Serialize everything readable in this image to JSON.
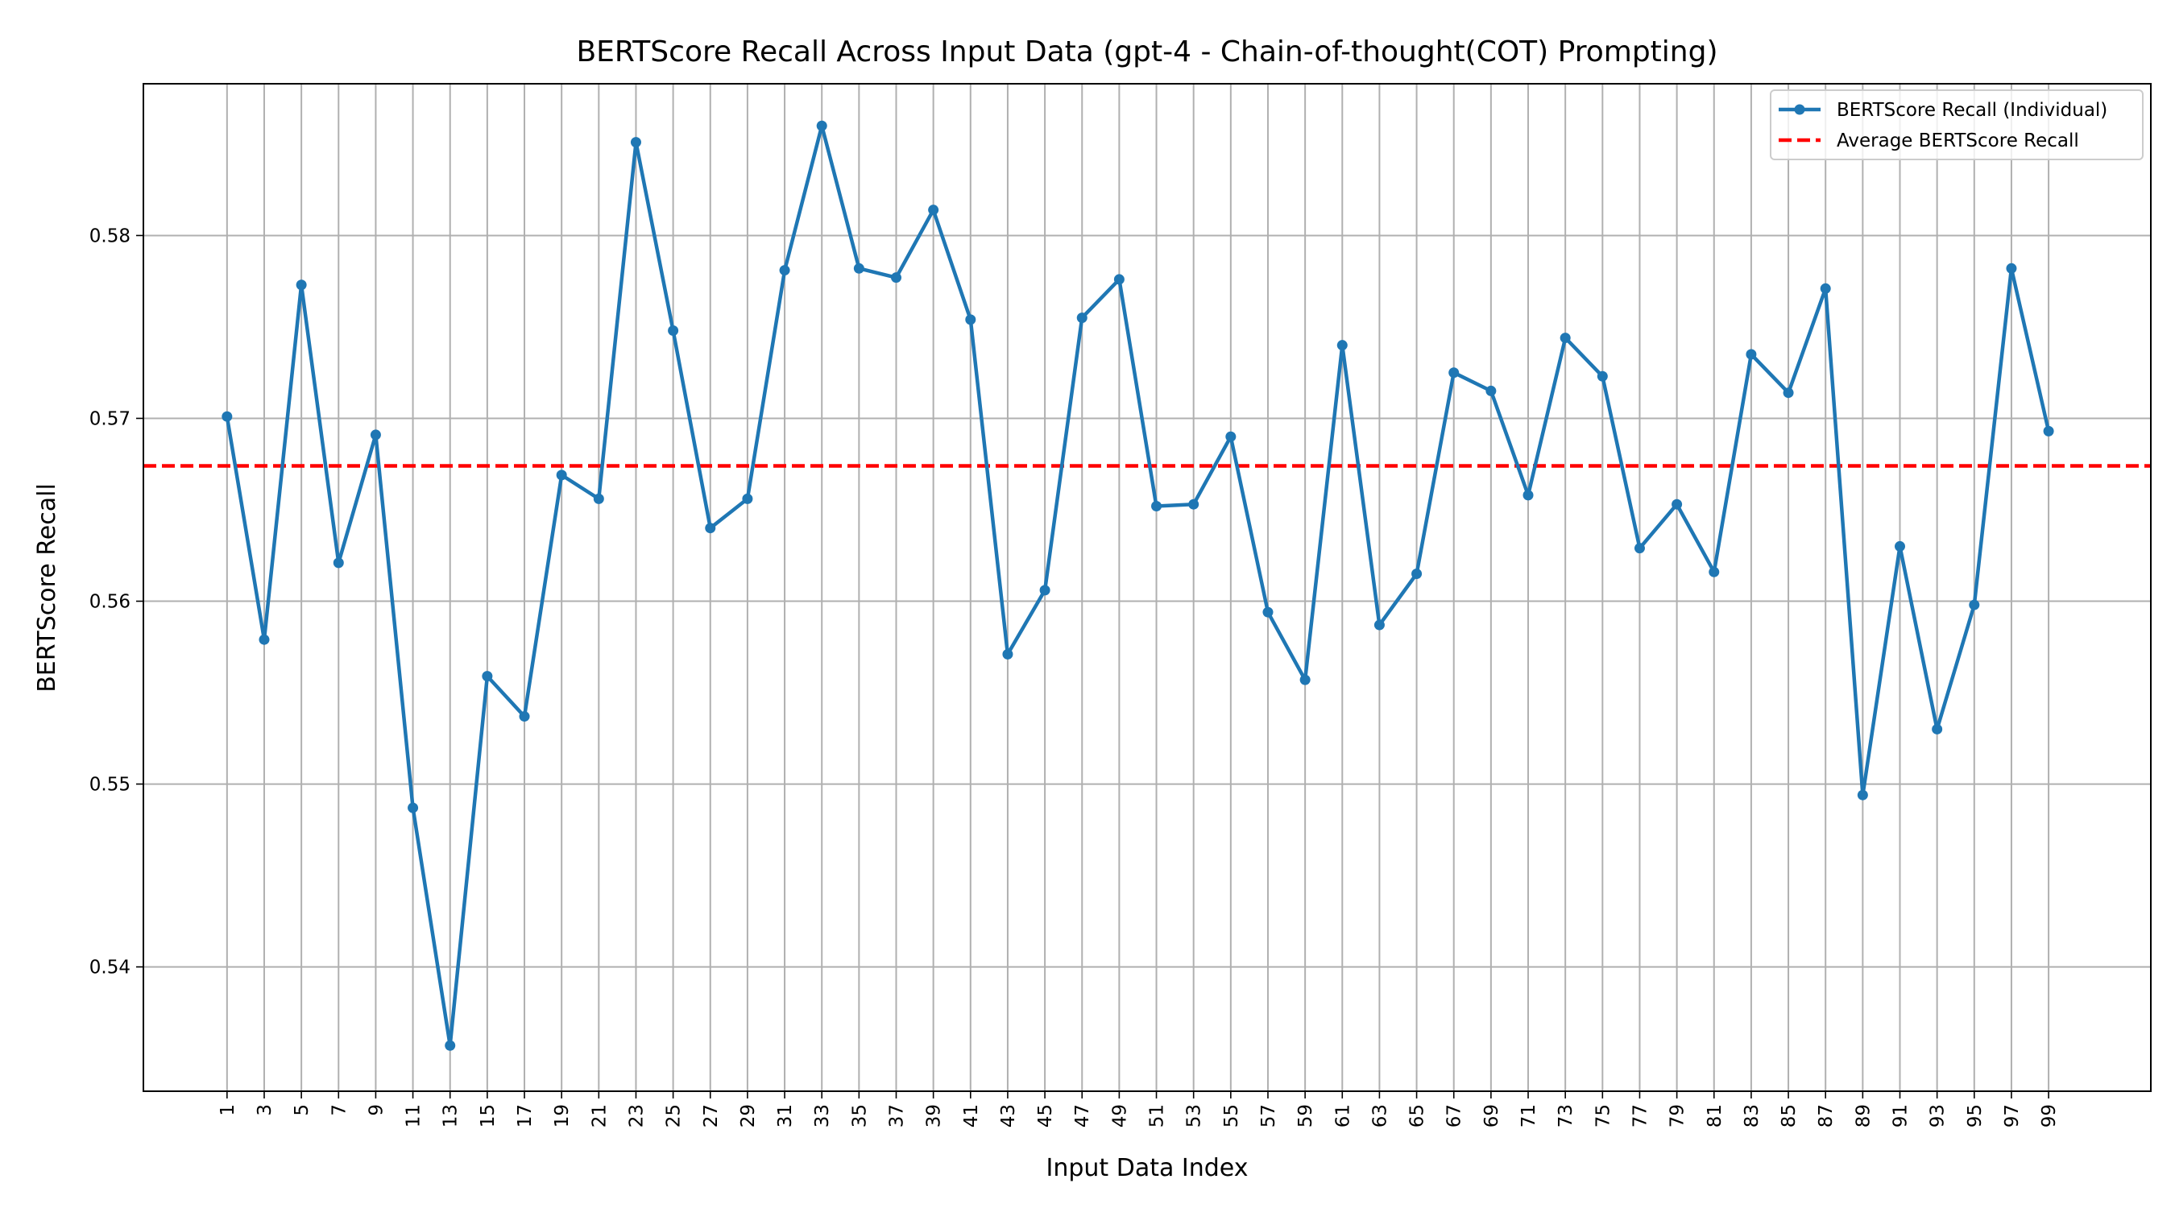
{
  "chart_data": {
    "type": "line",
    "title": "BERTScore Recall Across Input Data (gpt-4 - Chain-of-thought(COT) Prompting)",
    "xlabel": "Input Data Index",
    "ylabel": "BERTScore Recall",
    "xlim": [
      -3.5,
      104.5
    ],
    "ylim": [
      0.5332,
      0.5883
    ],
    "x_ticks": [
      1,
      3,
      5,
      7,
      9,
      11,
      13,
      15,
      17,
      19,
      21,
      23,
      25,
      27,
      29,
      31,
      33,
      35,
      37,
      39,
      41,
      43,
      45,
      47,
      49,
      51,
      53,
      55,
      57,
      59,
      61,
      63,
      65,
      67,
      69,
      71,
      73,
      75,
      77,
      79,
      81,
      83,
      85,
      87,
      89,
      91,
      93,
      95,
      97,
      99
    ],
    "y_ticks": [
      0.54,
      0.55,
      0.56,
      0.57,
      0.58
    ],
    "y_tick_labels": [
      "0.54",
      "0.55",
      "0.56",
      "0.57",
      "0.58"
    ],
    "grid": true,
    "legend_position": "top-right",
    "series": [
      {
        "name": "BERTScore Recall (Individual)",
        "color": "#1f77b4",
        "style": "line-marker",
        "x": [
          1,
          3,
          5,
          7,
          9,
          11,
          13,
          15,
          17,
          19,
          21,
          23,
          25,
          27,
          29,
          31,
          33,
          35,
          37,
          39,
          41,
          43,
          45,
          47,
          49,
          51,
          53,
          55,
          57,
          59,
          61,
          63,
          65,
          67,
          69,
          71,
          73,
          75,
          77,
          79,
          81,
          83,
          85,
          87,
          89,
          91,
          93,
          95,
          97,
          99
        ],
        "values": [
          0.5701,
          0.5579,
          0.5773,
          0.5621,
          0.5691,
          0.5487,
          0.5357,
          0.5559,
          0.5537,
          0.5669,
          0.5656,
          0.5851,
          0.5748,
          0.564,
          0.5656,
          0.5781,
          0.586,
          0.5782,
          0.5777,
          0.5814,
          0.5754,
          0.5571,
          0.5606,
          0.5755,
          0.5776,
          0.5652,
          0.5653,
          0.569,
          0.5594,
          0.5557,
          0.574,
          0.5587,
          0.5615,
          0.5725,
          0.5715,
          0.5658,
          0.5744,
          0.5723,
          0.5629,
          0.5653,
          0.5616,
          0.5735,
          0.5714,
          0.5771,
          0.5494,
          0.563,
          0.553,
          0.5598,
          0.5782,
          0.5693
        ]
      },
      {
        "name": "Average BERTScore Recall",
        "color": "#ff0000",
        "style": "dashed",
        "value": 0.5674
      }
    ]
  }
}
